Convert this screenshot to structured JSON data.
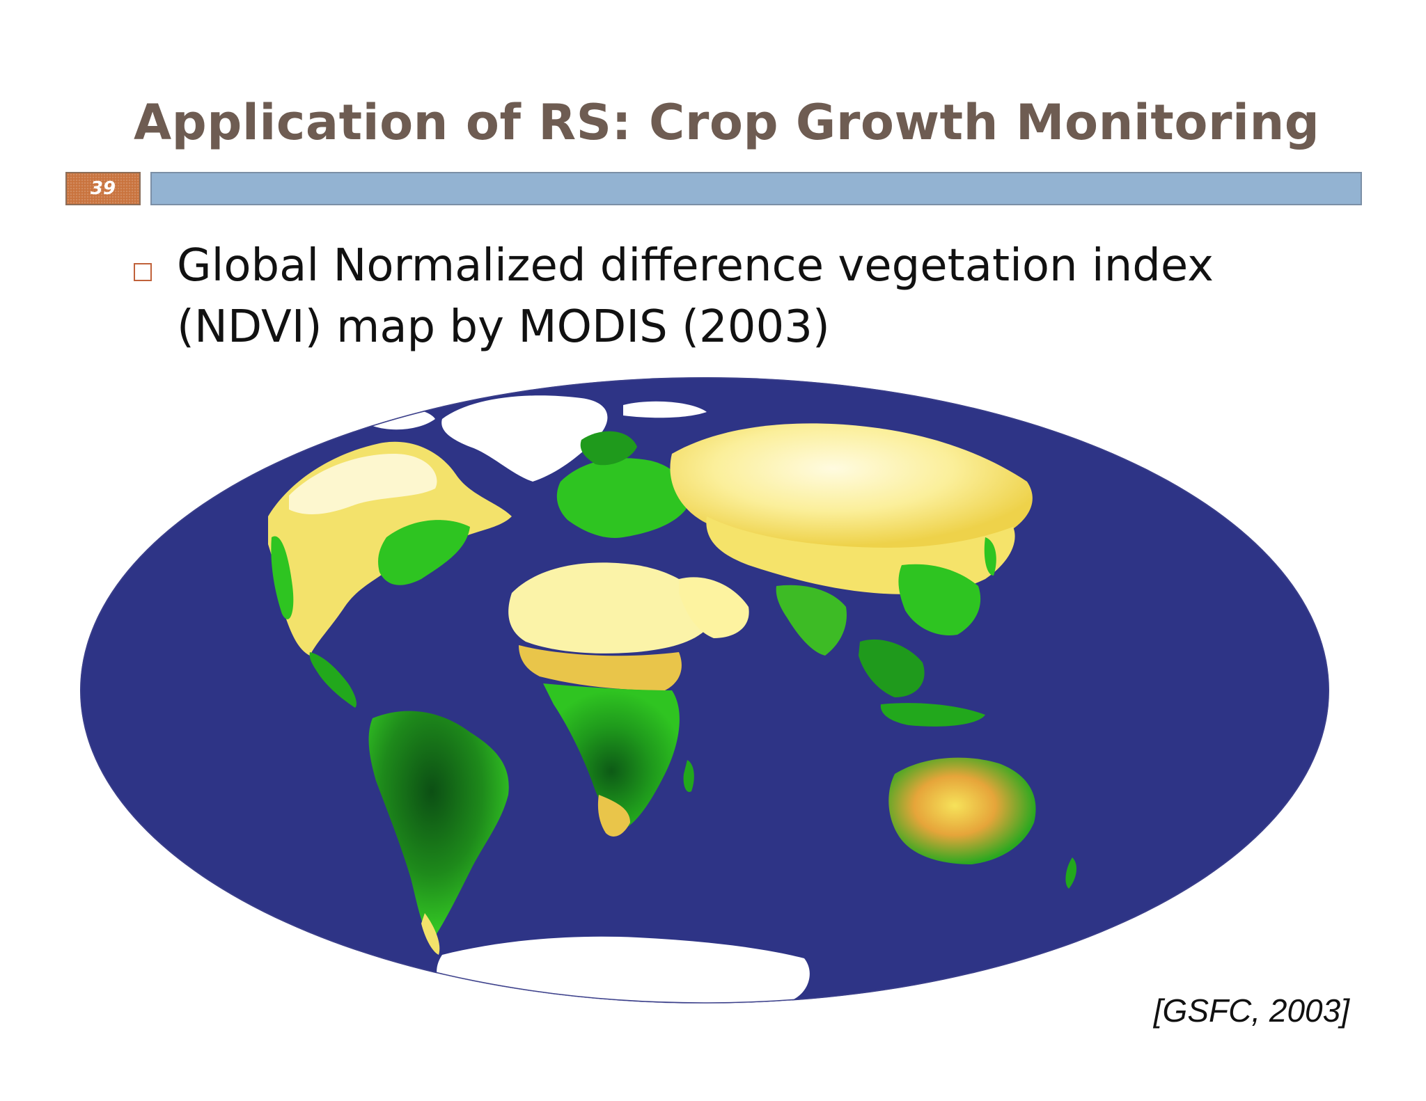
{
  "slide": {
    "title": "Application of RS: Crop Growth Monitoring",
    "number": "39",
    "bullet_line1": "Global Normalized difference vegetation index",
    "bullet_line2": "(NDVI) map by MODIS (2003)",
    "citation": "[GSFC, 2003]"
  },
  "colors": {
    "title": "#6e5c52",
    "number_box": "#c9733d",
    "title_bar": "#93b3d2",
    "ocean": "#2e3486",
    "ice": "#ffffff",
    "desert": "#fbf6b0",
    "sparse": "#f4e04a",
    "vegetation": "#29c21f",
    "dense_forest": "#0d5a16",
    "crop_stress": "#d9731f"
  },
  "map": {
    "projection": "Mollweide",
    "icon": "ndvi-world-map"
  }
}
